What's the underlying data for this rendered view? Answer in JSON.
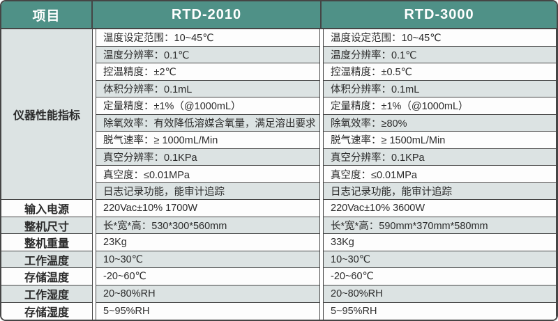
{
  "table": {
    "header": {
      "item": "项目",
      "product_a": "RTD-2010",
      "product_b": "RTD-3000"
    },
    "performance": {
      "label": "仪器性能指标",
      "rows": [
        {
          "a": "温度设定范围：10~45℃",
          "b": "温度设定范围：10~45℃"
        },
        {
          "a": "温度分辨率：0.1℃",
          "b": "温度分辨率：0.1℃"
        },
        {
          "a": "控温精度：±2℃",
          "b": "控温精度：±0.5℃"
        },
        {
          "a": "体积分辨率：0.1mL",
          "b": "体积分辨率：0.1mL"
        },
        {
          "a": "定量精度：±1%（@1000mL）",
          "b": "定量精度：±1%（@1000mL）"
        },
        {
          "a": "除氧效率：有效降低溶媒含氧量，满足溶出要求",
          "b": "除氧效率：≥80%"
        },
        {
          "a": "脱气速率：≥ 1000mL/Min",
          "b": "脱气速率：≥ 1500mL/Min"
        },
        {
          "a": "真空分辨率：0.1KPa",
          "b": "真空分辨率：0.1KPa"
        },
        {
          "a": "真空度：≤0.01MPa",
          "b": "真空度：≤0.01MPa"
        },
        {
          "a": "日志记录功能，能审计追踪",
          "b": "日志记录功能，能审计追踪"
        }
      ]
    },
    "general_rows": [
      {
        "label": "输入电源",
        "a": "220Vac±10% 1700W",
        "b": "220Vac±10% 3600W"
      },
      {
        "label": "整机尺寸",
        "a": "长*宽*高：530*300*560mm",
        "b": "长*宽*高：590mm*370mm*580mm"
      },
      {
        "label": "整机重量",
        "a": "23Kg",
        "b": "33Kg"
      },
      {
        "label": "工作温度",
        "a": "10~30℃",
        "b": "10~30℃"
      },
      {
        "label": "存储温度",
        "a": "-20~60℃",
        "b": "-20~60℃"
      },
      {
        "label": "工作湿度",
        "a": "20~80%RH",
        "b": "20~80%RH"
      },
      {
        "label": "存储湿度",
        "a": "5~95%RH",
        "b": "5~95%RH"
      }
    ]
  },
  "colors": {
    "header_bg": "#4f9187",
    "stripe": "#dce3e3",
    "row_white": "#fdfdfd",
    "border": "#454545",
    "text": "#2b2b2b"
  }
}
